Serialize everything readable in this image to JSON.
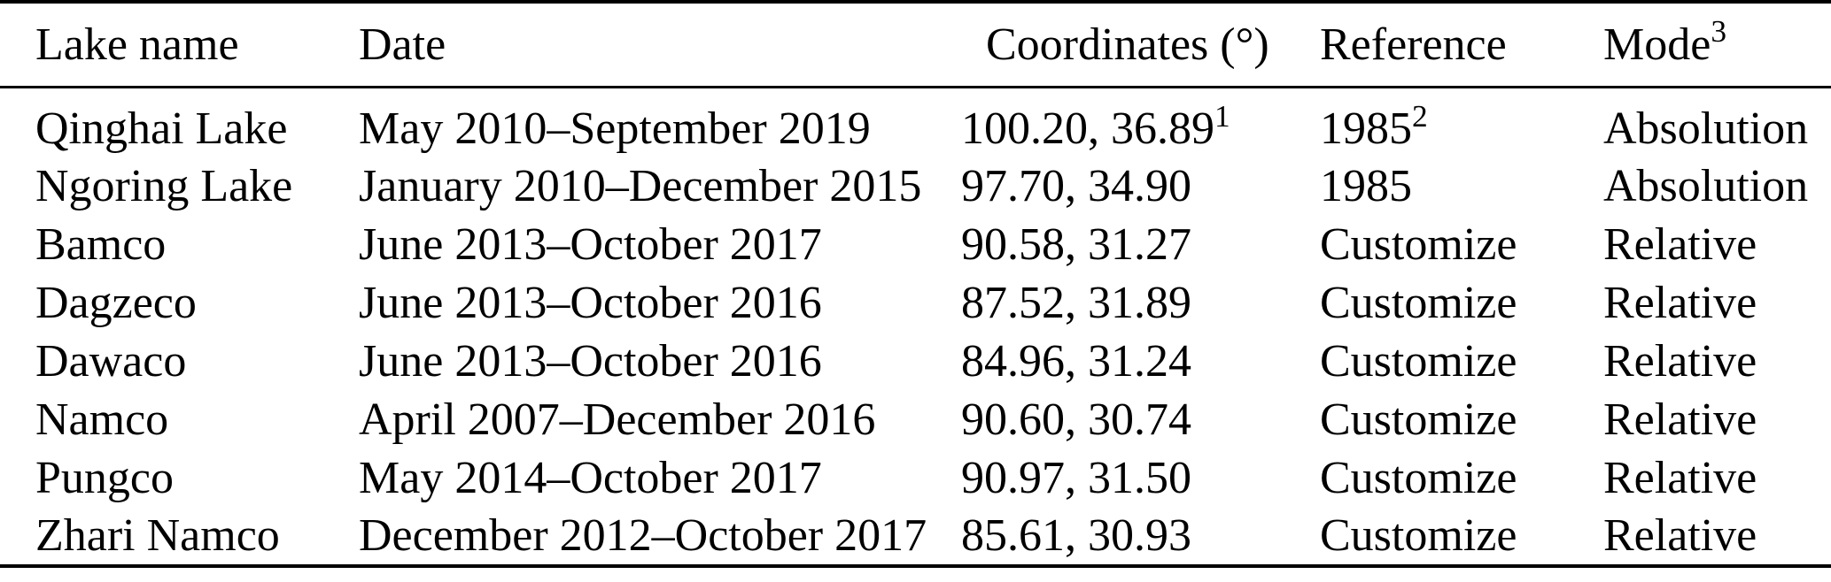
{
  "table": {
    "columns": {
      "lake": {
        "label": "Lake name"
      },
      "date": {
        "label": "Date"
      },
      "coord": {
        "label": "Coordinates (°)"
      },
      "ref": {
        "label": "Reference"
      },
      "mode": {
        "label": "Mode",
        "sup": "3"
      }
    },
    "rows": [
      {
        "lake": "Qinghai Lake",
        "date": "May 2010–September 2019",
        "coordinates": "100.20, 36.89",
        "coordinates_sup": "1",
        "reference": "1985",
        "reference_sup": "2",
        "mode": "Absolution"
      },
      {
        "lake": "Ngoring Lake",
        "date": "January 2010–December 2015",
        "coordinates": "97.70, 34.90",
        "coordinates_sup": "",
        "reference": "1985",
        "reference_sup": "",
        "mode": "Absolution"
      },
      {
        "lake": "Bamco",
        "date": "June 2013–October 2017",
        "coordinates": "90.58, 31.27",
        "coordinates_sup": "",
        "reference": "Customize",
        "reference_sup": "",
        "mode": "Relative"
      },
      {
        "lake": "Dagzeco",
        "date": "June 2013–October 2016",
        "coordinates": "87.52, 31.89",
        "coordinates_sup": "",
        "reference": "Customize",
        "reference_sup": "",
        "mode": "Relative"
      },
      {
        "lake": "Dawaco",
        "date": "June 2013–October 2016",
        "coordinates": "84.96, 31.24",
        "coordinates_sup": "",
        "reference": "Customize",
        "reference_sup": "",
        "mode": "Relative"
      },
      {
        "lake": "Namco",
        "date": "April 2007–December 2016",
        "coordinates": "90.60, 30.74",
        "coordinates_sup": "",
        "reference": "Customize",
        "reference_sup": "",
        "mode": "Relative"
      },
      {
        "lake": "Pungco",
        "date": "May 2014–October 2017",
        "coordinates": "90.97, 31.50",
        "coordinates_sup": "",
        "reference": "Customize",
        "reference_sup": "",
        "mode": "Relative"
      },
      {
        "lake": "Zhari Namco",
        "date": "December 2012–October 2017",
        "coordinates": "85.61, 30.93",
        "coordinates_sup": "",
        "reference": "Customize",
        "reference_sup": "",
        "mode": "Relative"
      }
    ],
    "colors": {
      "text": "#000000",
      "background": "#ffffff",
      "rule": "#000000"
    }
  }
}
